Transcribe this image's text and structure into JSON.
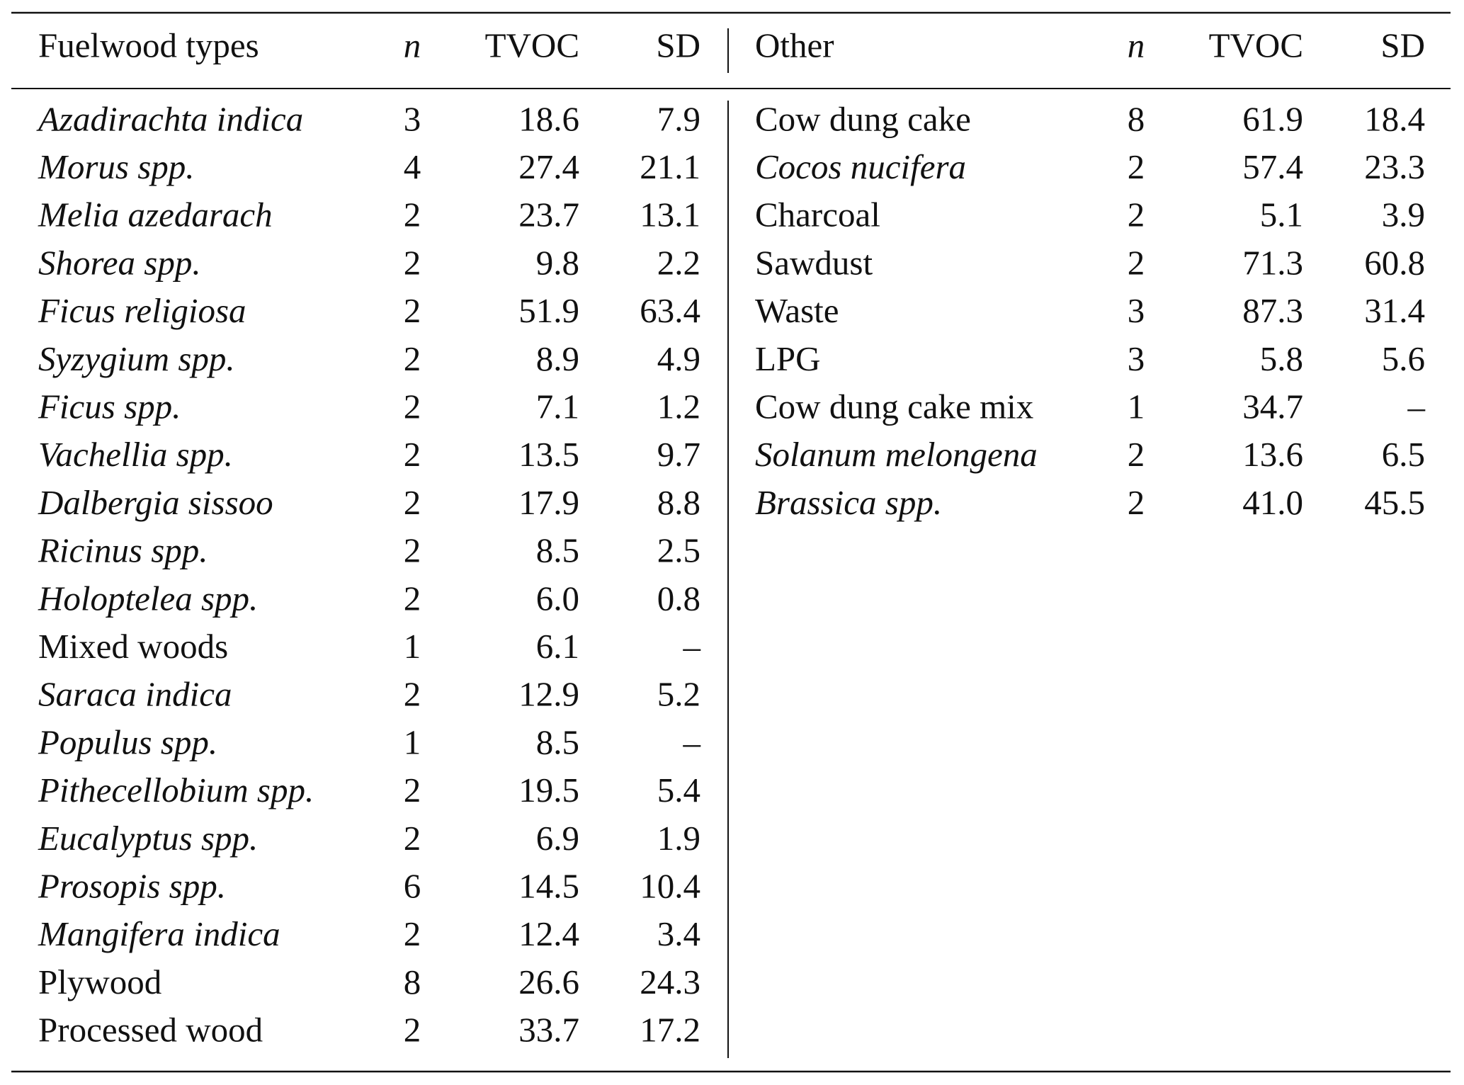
{
  "table": {
    "left": {
      "header": [
        "Fuelwood types",
        "n",
        "TVOC",
        "SD"
      ],
      "rows": [
        [
          "Azadirachta indica",
          "3",
          "18.6",
          "7.9"
        ],
        [
          "Morus spp.",
          "4",
          "27.4",
          "21.1"
        ],
        [
          "Melia azedarach",
          "2",
          "23.7",
          "13.1"
        ],
        [
          "Shorea spp.",
          "2",
          "9.8",
          "2.2"
        ],
        [
          "Ficus religiosa",
          "2",
          "51.9",
          "63.4"
        ],
        [
          "Syzygium spp.",
          "2",
          "8.9",
          "4.9"
        ],
        [
          "Ficus spp.",
          "2",
          "7.1",
          "1.2"
        ],
        [
          "Vachellia spp.",
          "2",
          "13.5",
          "9.7"
        ],
        [
          "Dalbergia sissoo",
          "2",
          "17.9",
          "8.8"
        ],
        [
          "Ricinus spp.",
          "2",
          "8.5",
          "2.5"
        ],
        [
          "Holoptelea spp.",
          "2",
          "6.0",
          "0.8"
        ],
        [
          "Mixed woods",
          "1",
          "6.1",
          "–"
        ],
        [
          "Saraca indica",
          "2",
          "12.9",
          "5.2"
        ],
        [
          "Populus spp.",
          "1",
          "8.5",
          "–"
        ],
        [
          "Pithecellobium spp.",
          "2",
          "19.5",
          "5.4"
        ],
        [
          "Eucalyptus spp.",
          "2",
          "6.9",
          "1.9"
        ],
        [
          "Prosopis spp.",
          "6",
          "14.5",
          "10.4"
        ],
        [
          "Mangifera indica",
          "2",
          "12.4",
          "3.4"
        ],
        [
          "Plywood",
          "8",
          "26.6",
          "24.3"
        ],
        [
          "Processed wood",
          "2",
          "33.7",
          "17.2"
        ]
      ],
      "italic": [
        true,
        true,
        true,
        true,
        true,
        true,
        true,
        true,
        true,
        true,
        true,
        false,
        true,
        true,
        true,
        true,
        true,
        true,
        false,
        false
      ]
    },
    "right": {
      "header": [
        "Other",
        "n",
        "TVOC",
        "SD"
      ],
      "rows": [
        [
          "Cow dung cake",
          "8",
          "61.9",
          "18.4"
        ],
        [
          "Cocos nucifera",
          "2",
          "57.4",
          "23.3"
        ],
        [
          "Charcoal",
          "2",
          "5.1",
          "3.9"
        ],
        [
          "Sawdust",
          "2",
          "71.3",
          "60.8"
        ],
        [
          "Waste",
          "3",
          "87.3",
          "31.4"
        ],
        [
          "LPG",
          "3",
          "5.8",
          "5.6"
        ],
        [
          "Cow dung cake mix",
          "1",
          "34.7",
          "–"
        ],
        [
          "Solanum melongena",
          "2",
          "13.6",
          "6.5"
        ],
        [
          "Brassica spp.",
          "2",
          "41.0",
          "45.5"
        ]
      ],
      "italic": [
        false,
        true,
        false,
        false,
        false,
        false,
        false,
        true,
        true
      ]
    }
  }
}
